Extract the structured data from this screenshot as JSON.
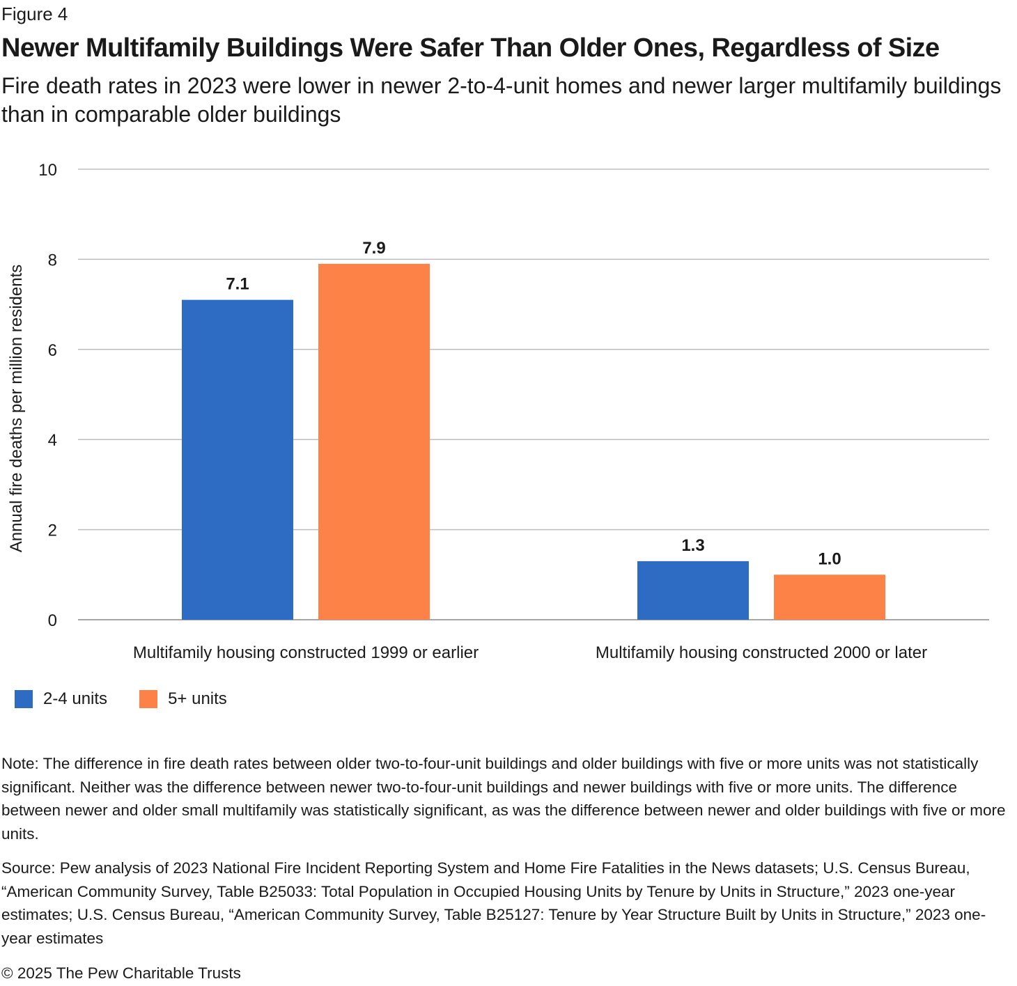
{
  "figure_label": "Figure 4",
  "chart_data": {
    "type": "bar",
    "title": "Newer Multifamily Buildings Were Safer Than Older Ones, Regardless of Size",
    "subtitle": "Fire death rates in 2023 were lower in newer 2-to-4-unit homes and newer larger multifamily buildings than in comparable older buildings",
    "xlabel": "",
    "ylabel": "Annual fire deaths per million residents",
    "ylim": [
      0,
      10
    ],
    "yticks": [
      0,
      2,
      4,
      6,
      8,
      10
    ],
    "categories": [
      "Multifamily housing constructed 1999 or earlier",
      "Multifamily housing constructed 2000 or later"
    ],
    "series": [
      {
        "name": "2-4 units",
        "color": "#2d6cc2",
        "values": [
          7.1,
          1.3
        ],
        "labels": [
          "7.1",
          "1.3"
        ]
      },
      {
        "name": "5+ units",
        "color": "#fd8247",
        "values": [
          7.9,
          1.0
        ],
        "labels": [
          "7.9",
          "1.0"
        ]
      }
    ],
    "grid": true,
    "legend": "bottom-left"
  },
  "note": "Note: The difference in fire death rates between older two-to-four-unit buildings and older buildings with five or more units was not statistically significant. Neither was the difference between newer two-to-four-unit buildings and newer buildings with five or more units. The difference between newer and older small multifamily was statistically significant, as was the difference between newer and older buildings with five or more units.",
  "source": "Source: Pew analysis of 2023 National Fire Incident Reporting System and Home Fire Fatalities in the News datasets; U.S. Census Bureau, “American Community Survey, Table B25033: Total Population in Occupied Housing Units by Tenure by Units in Structure,” 2023 one-year estimates; U.S. Census Bureau, “American Community Survey, Table B25127: Tenure by Year Structure Built by Units in Structure,” 2023 one-year estimates",
  "copyright": "© 2025 The Pew Charitable Trusts"
}
